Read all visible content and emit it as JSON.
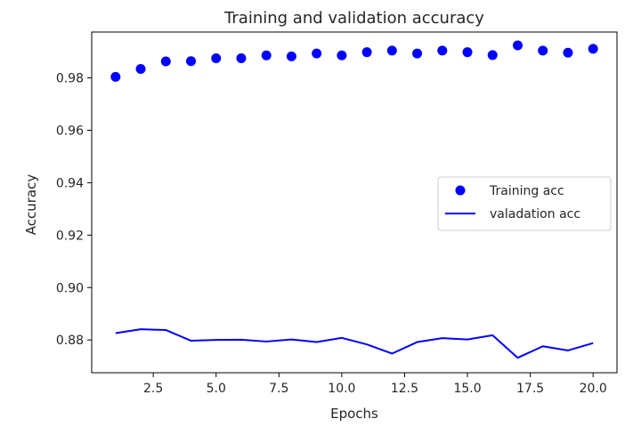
{
  "chart_data": {
    "type": "scatter+line",
    "title": "Training and validation accuracy",
    "xlabel": "Epochs",
    "ylabel": "Accuracy",
    "xlim": [
      0.05,
      20.95
    ],
    "ylim": [
      0.8675,
      0.9975
    ],
    "xticks": [
      2.5,
      5.0,
      7.5,
      10.0,
      12.5,
      15.0,
      17.5,
      20.0
    ],
    "xtick_labels": [
      "2.5",
      "5.0",
      "7.5",
      "10.0",
      "12.5",
      "15.0",
      "17.5",
      "20.0"
    ],
    "yticks": [
      0.88,
      0.9,
      0.92,
      0.94,
      0.96,
      0.98
    ],
    "ytick_labels": [
      "0.88",
      "0.90",
      "0.92",
      "0.94",
      "0.96",
      "0.98"
    ],
    "grid": false,
    "legend_position": "center-right",
    "series": [
      {
        "name": "Training acc",
        "kind": "scatter",
        "color": "#0000ff",
        "x": [
          1,
          2,
          3,
          4,
          5,
          6,
          7,
          8,
          9,
          10,
          11,
          12,
          13,
          14,
          15,
          16,
          17,
          18,
          19,
          20
        ],
        "y": [
          0.9804,
          0.9834,
          0.9863,
          0.9864,
          0.9875,
          0.9875,
          0.9886,
          0.9882,
          0.9893,
          0.9886,
          0.9898,
          0.9904,
          0.9893,
          0.9904,
          0.9898,
          0.9887,
          0.9924,
          0.9904,
          0.9896,
          0.9911
        ]
      },
      {
        "name": "valadation acc",
        "kind": "line",
        "color": "#0000ff",
        "x": [
          1,
          2,
          3,
          4,
          5,
          6,
          7,
          8,
          9,
          10,
          11,
          12,
          13,
          14,
          15,
          16,
          17,
          18,
          19,
          20
        ],
        "y": [
          0.8826,
          0.8841,
          0.8838,
          0.8797,
          0.88,
          0.8801,
          0.8794,
          0.8802,
          0.8792,
          0.8808,
          0.8783,
          0.8748,
          0.8792,
          0.8807,
          0.8802,
          0.8818,
          0.8732,
          0.8776,
          0.876,
          0.8788
        ]
      }
    ]
  }
}
